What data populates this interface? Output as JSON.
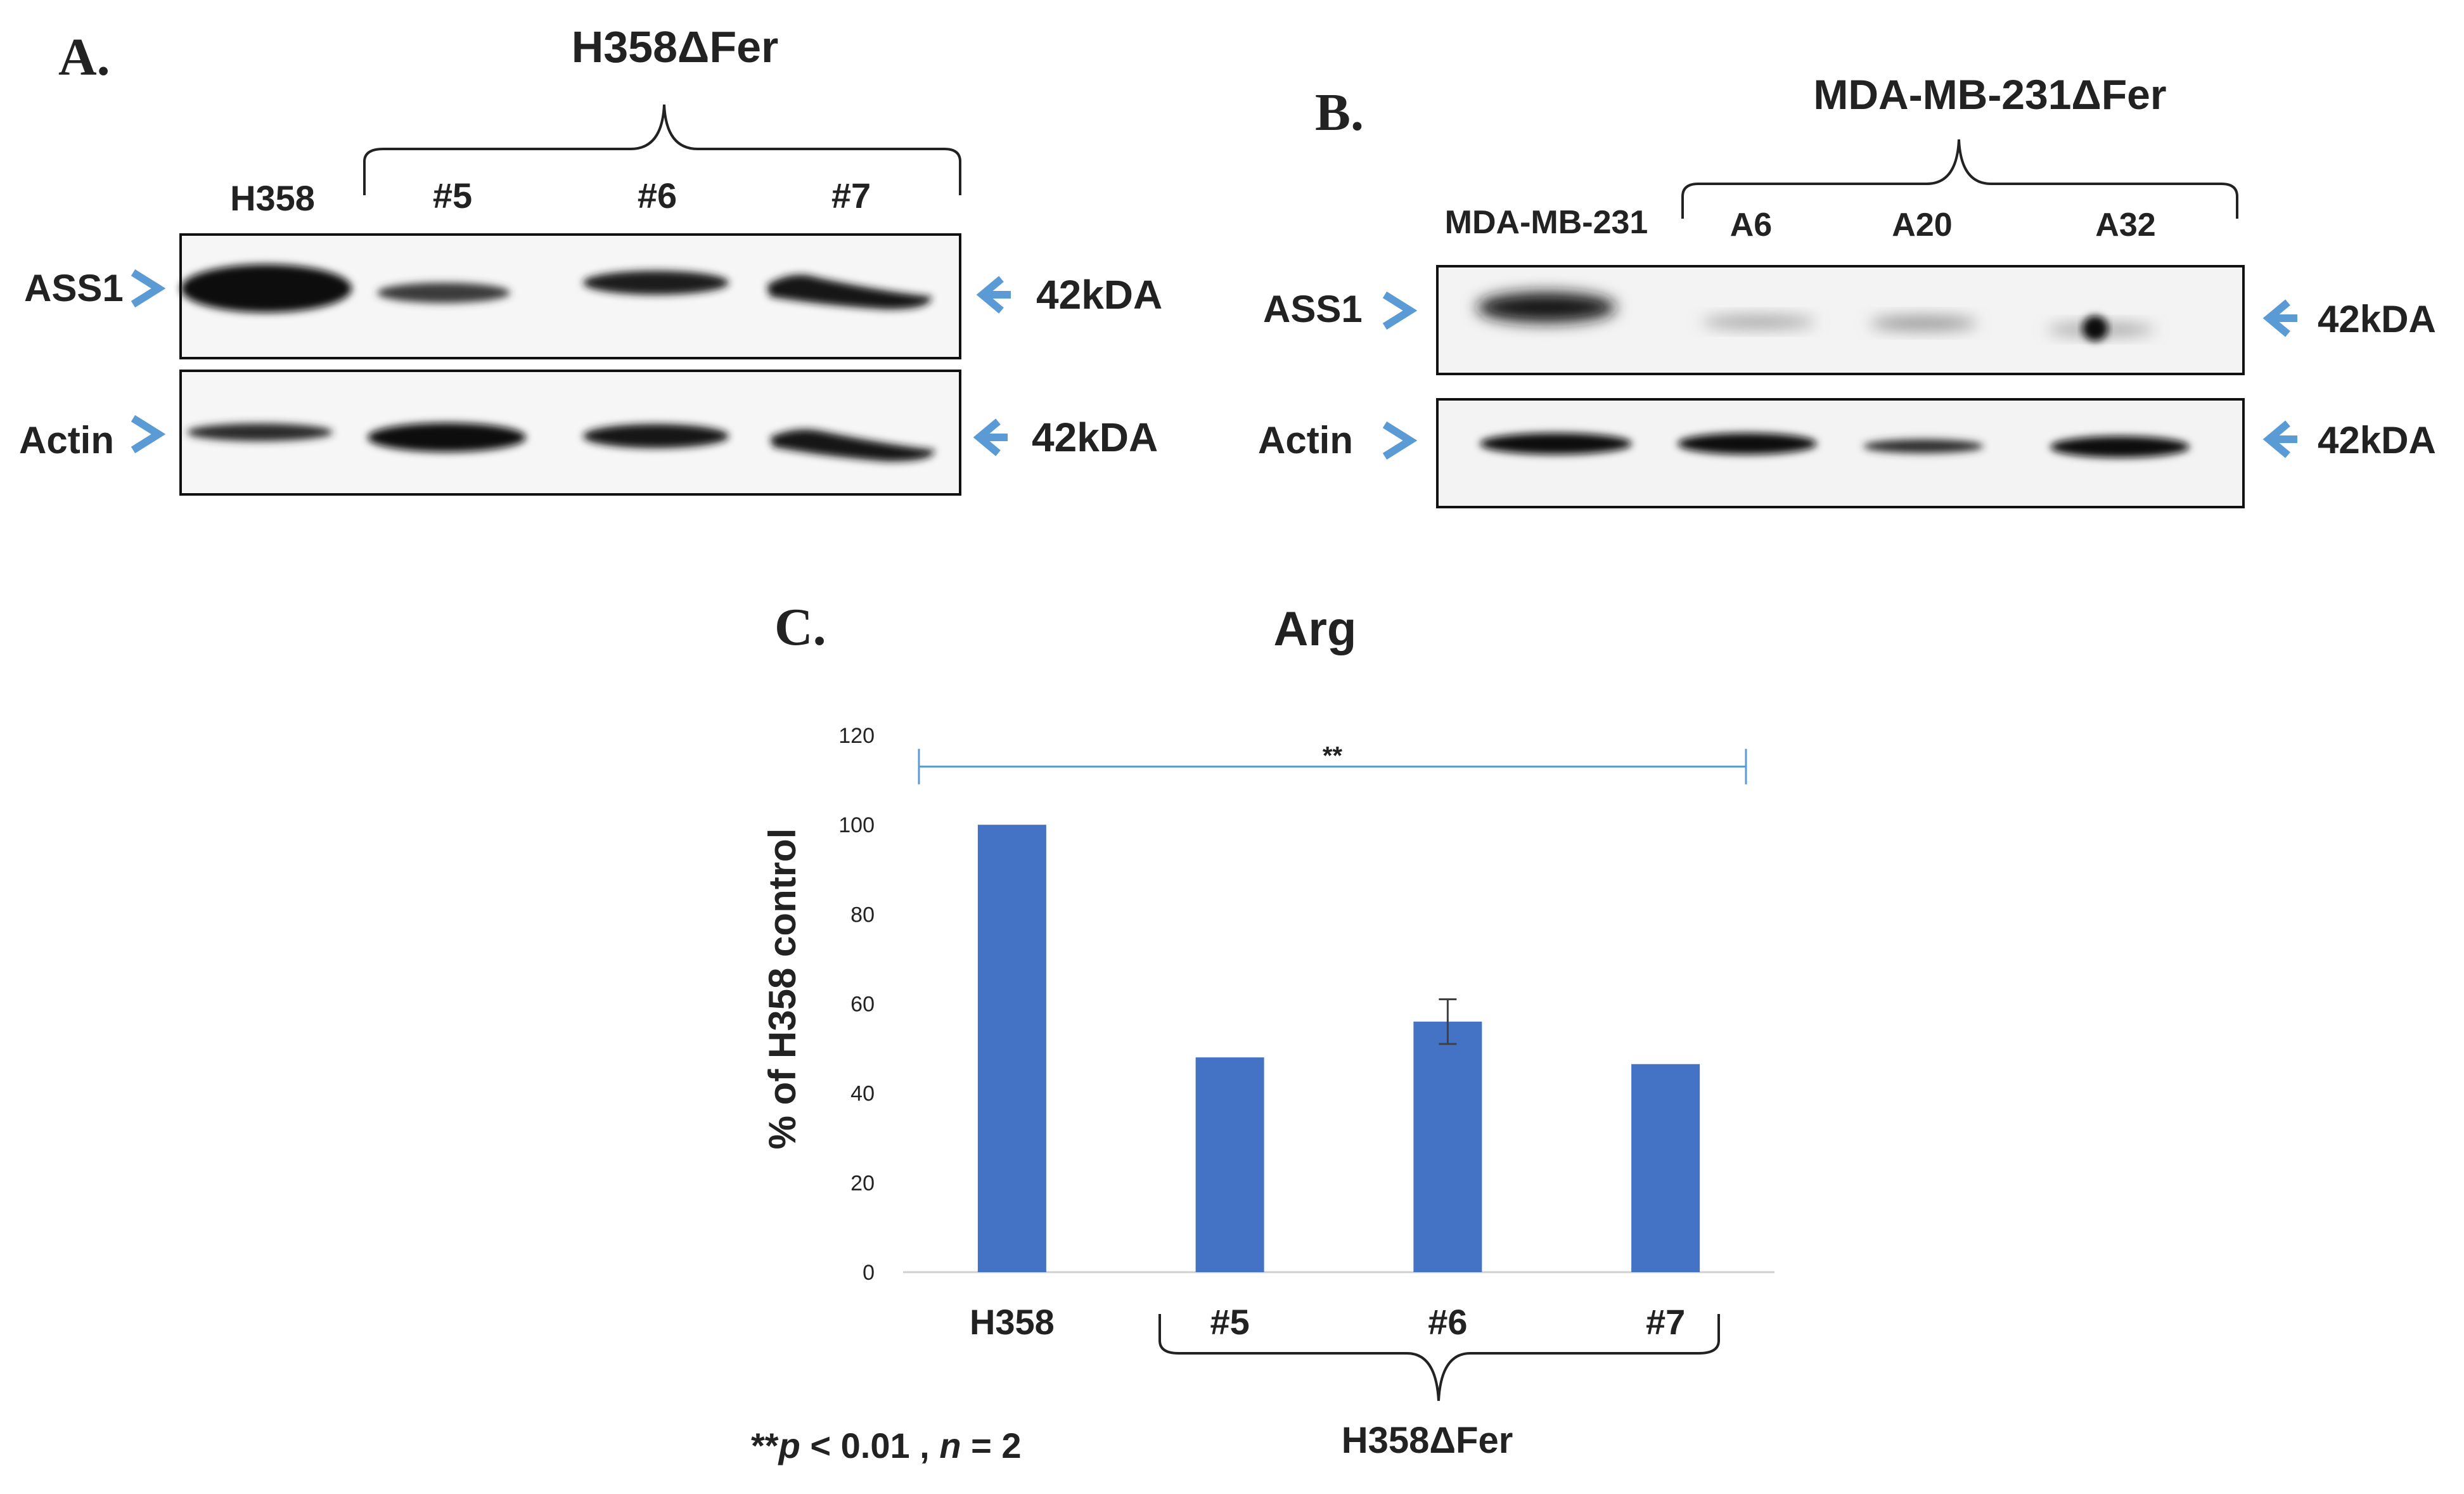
{
  "panelA": {
    "letter": "A.",
    "group_label": "H358ΔFer",
    "lanes": [
      "H358",
      "#5",
      "#6",
      "#7"
    ],
    "rows": [
      {
        "label": "ASS1",
        "marker": "42kDA"
      },
      {
        "label": "Actin",
        "marker": "42kDA"
      }
    ]
  },
  "panelB": {
    "letter": "B.",
    "group_label": "MDA-MB-231ΔFer",
    "lanes": [
      "MDA-MB-231",
      "A6",
      "A20",
      "A32"
    ],
    "rows": [
      {
        "label": "ASS1",
        "marker": "42kDA"
      },
      {
        "label": "Actin",
        "marker": "42kDA"
      }
    ]
  },
  "panelC": {
    "letter": "C.",
    "group_label": "H358ΔFer",
    "footnote_stars": "**",
    "footnote_p": "p",
    "footnote_lt": " < 0.01 , ",
    "footnote_n": "n",
    "footnote_eq": " = 2",
    "significance": "**",
    "colors": {
      "bar": "#4472c4",
      "bracket": "#5b9bd5",
      "arrow": "#5b9bd5"
    }
  },
  "chart_data": {
    "type": "bar",
    "title": "Arg",
    "categories": [
      "H358",
      "#5",
      "#6",
      "#7"
    ],
    "values": [
      100,
      48,
      56,
      46.5
    ],
    "errors": [
      0,
      0,
      5,
      0
    ],
    "ylabel": "% of H358 control",
    "xlabel": "",
    "ylim": [
      0,
      120
    ],
    "yticks": [
      0,
      20,
      40,
      60,
      80,
      100,
      120
    ],
    "grid": false
  }
}
